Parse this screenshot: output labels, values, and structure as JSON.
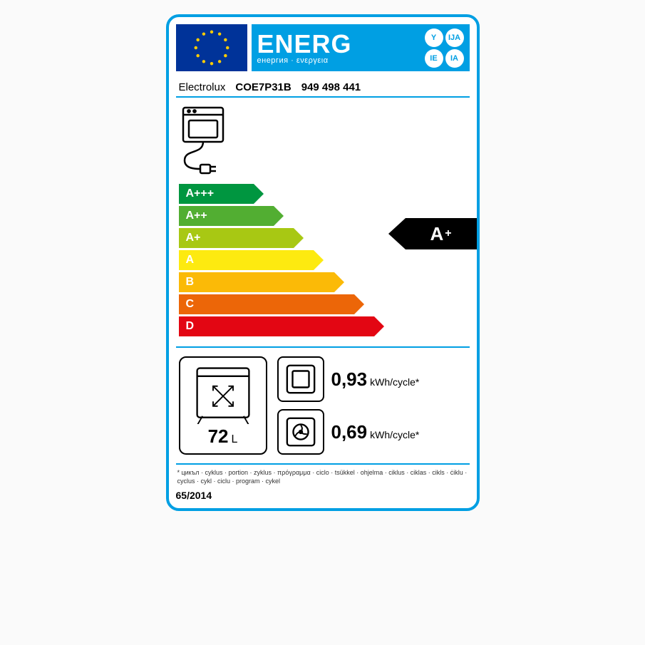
{
  "header": {
    "title_big": "ENERG",
    "title_small": "енергия · ενεργεια",
    "lang_codes": [
      "Y",
      "IJA",
      "IE",
      "IA"
    ],
    "colors": {
      "blue": "#009fe3",
      "eu_blue": "#003399",
      "star": "#ffcc00"
    }
  },
  "product": {
    "brand": "Electrolux",
    "model": "COE7P31B",
    "code": "949 498 441"
  },
  "scale": {
    "classes": [
      {
        "label": "A+++",
        "color": "#009640",
        "width_pct": 26
      },
      {
        "label": "A++",
        "color": "#52ae32",
        "width_pct": 33
      },
      {
        "label": "A+",
        "color": "#a8c813",
        "width_pct": 40
      },
      {
        "label": "A",
        "color": "#fdea10",
        "width_pct": 47
      },
      {
        "label": "B",
        "color": "#fbba07",
        "width_pct": 54
      },
      {
        "label": "C",
        "color": "#ec6608",
        "width_pct": 61
      },
      {
        "label": "D",
        "color": "#e30613",
        "width_pct": 68
      }
    ],
    "rating": {
      "index": 2,
      "text": "A",
      "sup": "+"
    }
  },
  "specs": {
    "volume": {
      "value": "72",
      "unit": "L"
    },
    "kwh_conventional": {
      "value": "0,93",
      "unit": "kWh/cycle*"
    },
    "kwh_fan": {
      "value": "0,69",
      "unit": "kWh/cycle*"
    }
  },
  "footnote": "* цикъл · cyklus · portion · zyklus · πρόγραμμα · ciclo · tsükkel · ohjelma · ciklus · ciklas · cikls · ċiklu · cyclus · cykl · ciclu · program · cykel",
  "regulation": "65/2014"
}
